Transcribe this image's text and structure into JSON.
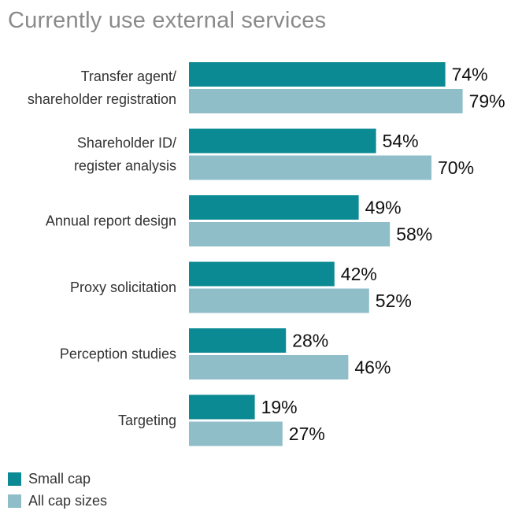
{
  "chart_data": {
    "type": "bar",
    "orientation": "horizontal",
    "title": "Currently use external services",
    "xlim": [
      0,
      100
    ],
    "grid": false,
    "legend_position": "bottom-left",
    "value_suffix": "%",
    "categories": [
      [
        "Transfer agent/",
        "shareholder registration"
      ],
      [
        "Shareholder ID/",
        "register analysis"
      ],
      [
        "Annual report design"
      ],
      [
        "Proxy solicitation"
      ],
      [
        "Perception studies"
      ],
      [
        "Targeting"
      ]
    ],
    "series": [
      {
        "name": "Small cap",
        "color": "#0b8a93",
        "values": [
          74,
          54,
          49,
          42,
          28,
          19
        ]
      },
      {
        "name": "All cap sizes",
        "color": "#8fbec8",
        "values": [
          79,
          70,
          58,
          52,
          46,
          27
        ]
      }
    ]
  }
}
